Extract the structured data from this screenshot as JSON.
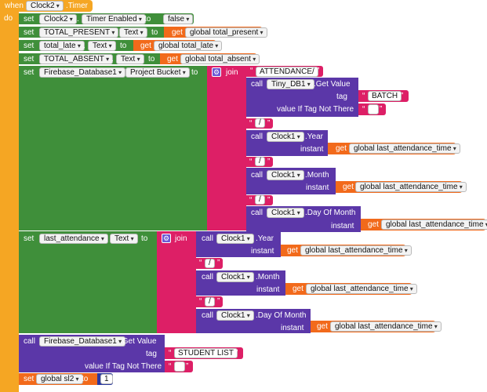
{
  "event": {
    "when": "when",
    "component": "Clock2",
    "event_name": ".Timer",
    "do": "do"
  },
  "row1": {
    "set": "set",
    "component": "Clock2",
    "dot": ".",
    "property": "Timer Enabled",
    "to": "to",
    "value": "false"
  },
  "row2": {
    "set": "set",
    "component": "TOTAL_PRESENT",
    "dot": ".",
    "property": "Text",
    "to": "to",
    "get": "get",
    "variable": "global total_present"
  },
  "row3": {
    "set": "set",
    "component": "total_late",
    "dot": ".",
    "property": "Text",
    "to": "to",
    "get": "get",
    "variable": "global total_late"
  },
  "row4": {
    "set": "set",
    "component": "TOTAL_ABSENT",
    "dot": ".",
    "property": "Text",
    "to": "to",
    "get": "get",
    "variable": "global total_absent"
  },
  "row5": {
    "set": "set",
    "component": "Firebase_Database1",
    "dot": ".",
    "property": "Project Bucket",
    "to": "to",
    "join": "join",
    "text1": "ATTENDANCE/",
    "call": "call",
    "db_component": "Tiny_DB1",
    "db_method": ".Get Value",
    "tag_label": "tag",
    "tag_value": "BATCH",
    "vitn_label": "value If Tag Not There",
    "vitn_value": "",
    "slash": "/",
    "clock": "Clock1",
    "year": ".Year",
    "month": ".Month",
    "dayofmonth": ".Day Of Month",
    "instant": "instant",
    "get": "get",
    "variable": "global last_attendance_time"
  },
  "row6": {
    "set": "set",
    "component": "last_attendance",
    "dot": ".",
    "property": "Text",
    "to": "to",
    "join": "join",
    "call": "call",
    "clock": "Clock1",
    "year": ".Year",
    "month": ".Month",
    "dayofmonth": ".Day Of Month",
    "instant": "instant",
    "get": "get",
    "variable": "global last_attendance_time",
    "slash": "/"
  },
  "row7": {
    "call": "call",
    "component": "Firebase_Database1",
    "method": ".Get Value",
    "tag_label": "tag",
    "tag_value": "STUDENT LIST",
    "vitn_label": "value If Tag Not There",
    "vitn_value": ""
  },
  "row8": {
    "set": "set",
    "variable": "global sl2",
    "to": "to",
    "value": "1"
  },
  "colors": {
    "event": "#f5a623",
    "setter": "#3f8f3a",
    "text": "#dd1f66",
    "call": "#5b37a8",
    "get": "#f26a1b",
    "number": "#2c3aa0"
  }
}
